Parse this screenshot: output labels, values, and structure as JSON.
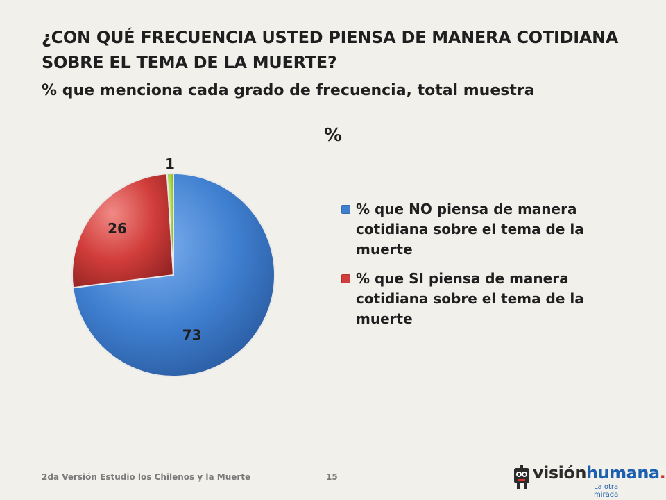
{
  "title": "¿CON QUÉ FRECUENCIA USTED PIENSA DE MANERA COTIDIANA SOBRE EL TEMA DE LA MUERTE?",
  "subtitle": "% que menciona cada grado de frecuencia, total muestra",
  "unit_label": "%",
  "chart_data": {
    "type": "pie",
    "title": "¿CON QUÉ FRECUENCIA USTED PIENSA DE MANERA COTIDIANA SOBRE EL TEMA DE LA MUERTE?",
    "subtitle": "% que menciona cada grado de frecuencia, total muestra",
    "unit": "%",
    "legend_position": "right",
    "slices": [
      {
        "label": "% que NO piensa de manera cotidiana sobre el tema de la muerte",
        "value": 73,
        "data_label": "73",
        "color": "#3f7fd0",
        "in_legend": true
      },
      {
        "label": "% que SI piensa de manera cotidiana sobre el tema de la muerte",
        "value": 26,
        "data_label": "26",
        "color": "#d13d3a",
        "in_legend": true
      },
      {
        "label": "",
        "value": 1,
        "data_label": "1",
        "color": "#9ccf3c",
        "in_legend": false
      }
    ]
  },
  "footer": {
    "source_text": "2da Versión Estudio los Chilenos y la Muerte",
    "page_number": "15"
  },
  "logo": {
    "part1": "visión",
    "part2": "humana",
    "dot": ".",
    "tagline": "La otra mirada"
  }
}
